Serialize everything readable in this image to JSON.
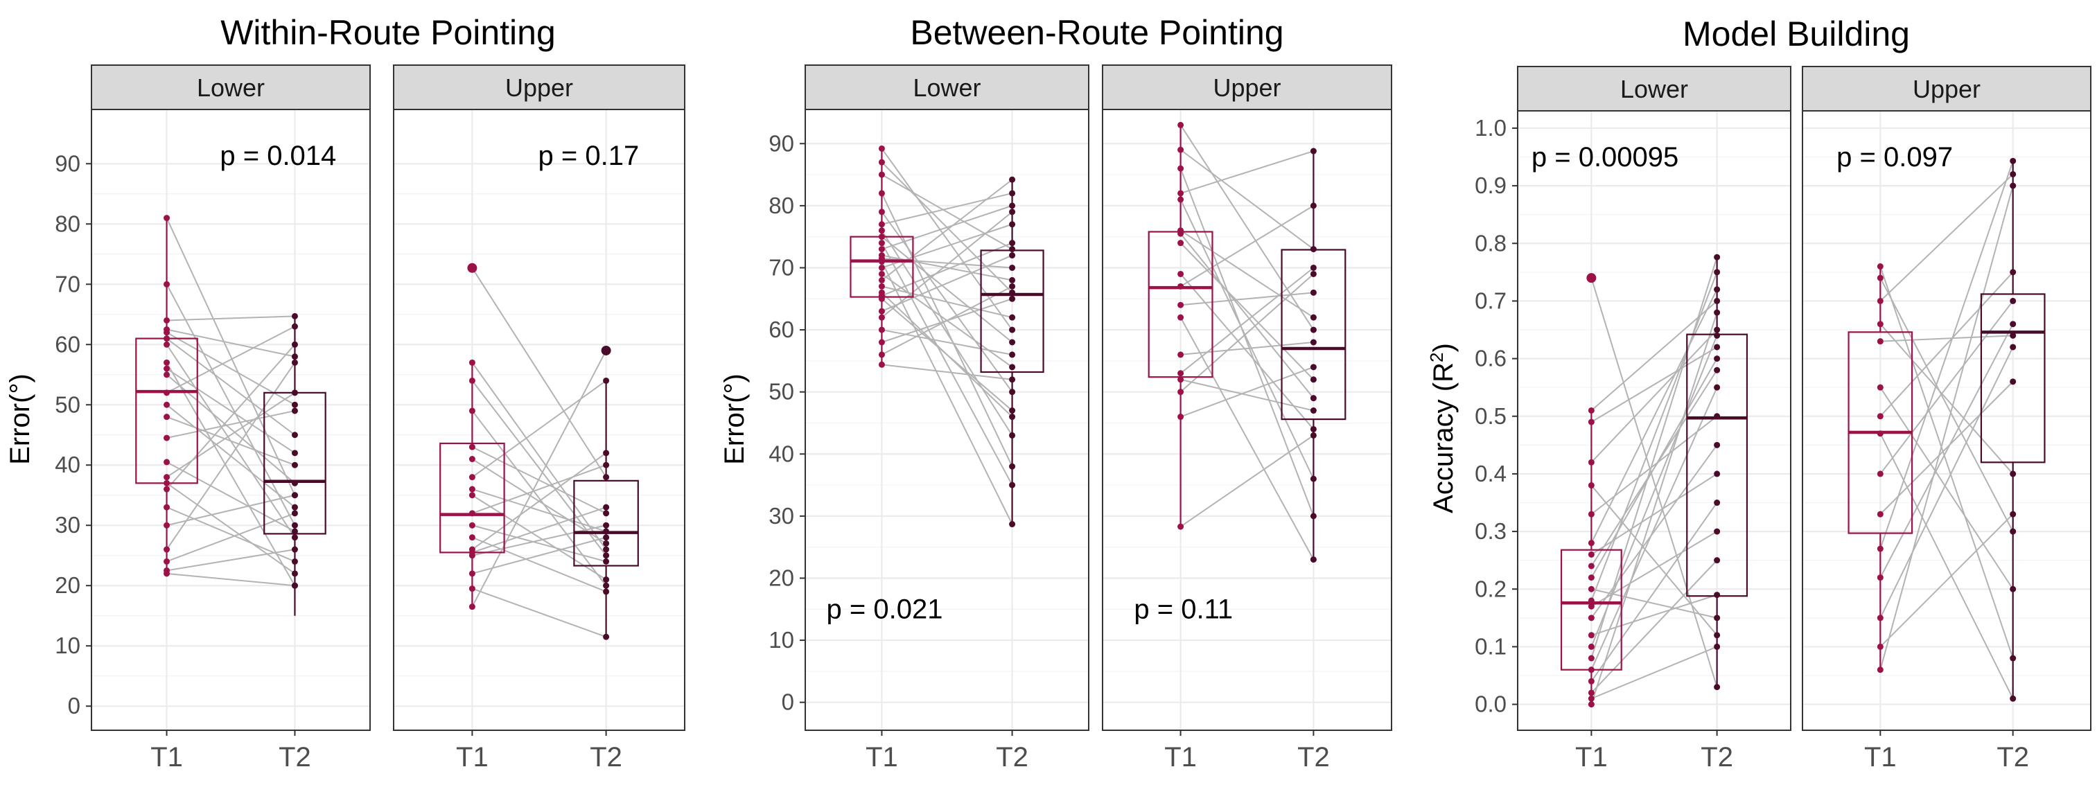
{
  "colors": {
    "t1": "#9b1148",
    "t2": "#4a0a2a",
    "pair_line": "#b3b3b3",
    "strip_fill": "#d9d9d9",
    "grid": "#ebebeb"
  },
  "chart_data": [
    {
      "type": "box",
      "title": "Within-Route Pointing",
      "ylabel": "Error(°)",
      "ylim": [
        -4,
        99
      ],
      "yticks": [
        0,
        10,
        20,
        30,
        40,
        50,
        60,
        70,
        80,
        90
      ],
      "yticklabels": [
        "0",
        "10",
        "20",
        "30",
        "40",
        "50",
        "60",
        "70",
        "80",
        "90"
      ],
      "pval_pos": "top",
      "categories": [
        "T1",
        "T2"
      ],
      "facets": [
        {
          "label": "Lower",
          "p_value": "p = 0.014",
          "box": [
            {
              "q1": 37,
              "median": 52.2,
              "q3": 61,
              "lo": 22,
              "hi": 81
            },
            {
              "q1": 28.6,
              "median": 37.3,
              "q3": 52,
              "lo": 15,
              "hi": 64.7
            }
          ],
          "pairs": [
            [
              81,
              35
            ],
            [
              70,
              30
            ],
            [
              64,
              64.7
            ],
            [
              62.5,
              58
            ],
            [
              62,
              50
            ],
            [
              61,
              45
            ],
            [
              60,
              28
            ],
            [
              57,
              20
            ],
            [
              56,
              42
            ],
            [
              55,
              37
            ],
            [
              52,
              63
            ],
            [
              50,
              33
            ],
            [
              48,
              40
            ],
            [
              44.5,
              49
            ],
            [
              40.5,
              29
            ],
            [
              38,
              52
            ],
            [
              37,
              22
            ],
            [
              36,
              60
            ],
            [
              33,
              24
            ],
            [
              30,
              35
            ],
            [
              26,
              57
            ],
            [
              24,
              32
            ],
            [
              22.5,
              26
            ],
            [
              22,
              20
            ]
          ],
          "outliers": []
        },
        {
          "label": "Upper",
          "p_value": "p = 0.17",
          "box": [
            {
              "q1": 25.5,
              "median": 31.8,
              "q3": 43.6,
              "lo": 16.5,
              "hi": 57
            },
            {
              "q1": 23.3,
              "median": 28.8,
              "q3": 37.4,
              "lo": 11.5,
              "hi": 54
            }
          ],
          "pairs": [
            [
              72.7,
              38
            ],
            [
              57,
              26
            ],
            [
              54,
              25
            ],
            [
              49,
              20
            ],
            [
              43,
              32
            ],
            [
              41,
              27
            ],
            [
              38,
              54
            ],
            [
              36,
              29
            ],
            [
              35,
              21
            ],
            [
              32,
              40
            ],
            [
              30,
              24
            ],
            [
              28,
              19
            ],
            [
              26,
              42
            ],
            [
              25.5,
              33
            ],
            [
              25,
              30
            ],
            [
              22,
              28
            ],
            [
              19.5,
              11.5
            ],
            [
              16.5,
              59
            ]
          ],
          "outliers": [
            {
              "series": 0,
              "value": 72.7
            },
            {
              "series": 1,
              "value": 59
            }
          ]
        }
      ]
    },
    {
      "type": "box",
      "title": "Between-Route Pointing",
      "ylabel": "Error(°)",
      "ylim": [
        -4.5,
        95.5
      ],
      "yticks": [
        0,
        10,
        20,
        30,
        40,
        50,
        60,
        70,
        80,
        90
      ],
      "yticklabels": [
        "0",
        "10",
        "20",
        "30",
        "40",
        "50",
        "60",
        "70",
        "80",
        "90"
      ],
      "pval_pos": "bottom",
      "categories": [
        "T1",
        "T2"
      ],
      "facets": [
        {
          "label": "Lower",
          "p_value": "p = 0.021",
          "box": [
            {
              "q1": 65.3,
              "median": 71.1,
              "q3": 75,
              "lo": 54.4,
              "hi": 89.2
            },
            {
              "q1": 53.2,
              "median": 65.7,
              "q3": 72.8,
              "lo": 28.7,
              "hi": 84.2
            }
          ],
          "pairs": [
            [
              89.2,
              60
            ],
            [
              87,
              66
            ],
            [
              85,
              73
            ],
            [
              82,
              38
            ],
            [
              79,
              50
            ],
            [
              77,
              82
            ],
            [
              76,
              43
            ],
            [
              75,
              58
            ],
            [
              74,
              35
            ],
            [
              73,
              80
            ],
            [
              72,
              68
            ],
            [
              71.5,
              70
            ],
            [
              71,
              28.7
            ],
            [
              70,
              77
            ],
            [
              69,
              54
            ],
            [
              68,
              84.2
            ],
            [
              67,
              62
            ],
            [
              66,
              46
            ],
            [
              65.5,
              74
            ],
            [
              65,
              47
            ],
            [
              63,
              72
            ],
            [
              62,
              79
            ],
            [
              60,
              56
            ],
            [
              58,
              65
            ],
            [
              56,
              67
            ],
            [
              54.4,
              52
            ]
          ],
          "outliers": []
        },
        {
          "label": "Upper",
          "p_value": "p = 0.11",
          "box": [
            {
              "q1": 52.4,
              "median": 66.8,
              "q3": 75.8,
              "lo": 28.3,
              "hi": 93
            },
            {
              "q1": 45.6,
              "median": 57,
              "q3": 72.9,
              "lo": 23,
              "hi": 88.8
            }
          ],
          "pairs": [
            [
              93,
              60
            ],
            [
              89,
              73
            ],
            [
              86,
              30
            ],
            [
              82,
              88.8
            ],
            [
              81,
              36
            ],
            [
              76,
              62
            ],
            [
              75.5,
              49
            ],
            [
              74,
              52
            ],
            [
              69,
              44
            ],
            [
              67,
              80
            ],
            [
              64,
              66
            ],
            [
              62,
              23
            ],
            [
              56,
              58
            ],
            [
              53,
              70
            ],
            [
              52,
              47
            ],
            [
              50,
              69
            ],
            [
              46,
              54
            ],
            [
              28.3,
              43
            ]
          ],
          "outliers": []
        }
      ]
    },
    {
      "type": "box",
      "title": "Model Building",
      "ylabel": "Accuracy (R²)",
      "ylim": [
        -0.045,
        1.03
      ],
      "yticks": [
        0.0,
        0.1,
        0.2,
        0.3,
        0.4,
        0.5,
        0.6,
        0.7,
        0.8,
        0.9,
        1.0
      ],
      "yticklabels": [
        "0.0",
        "0.1",
        "0.2",
        "0.3",
        "0.4",
        "0.5",
        "0.6",
        "0.7",
        "0.8",
        "0.9",
        "1.0"
      ],
      "pval_pos": "top",
      "categories": [
        "T1",
        "T2"
      ],
      "facets": [
        {
          "label": "Lower",
          "p_value": "p = 0.00095",
          "box": [
            {
              "q1": 0.06,
              "median": 0.176,
              "q3": 0.268,
              "lo": 0.0,
              "hi": 0.51
            },
            {
              "q1": 0.188,
              "median": 0.497,
              "q3": 0.642,
              "lo": 0.03,
              "hi": 0.776
            }
          ],
          "pairs": [
            [
              0.74,
              0.03
            ],
            [
              0.51,
              0.7
            ],
            [
              0.49,
              0.62
            ],
            [
              0.42,
              0.65
            ],
            [
              0.38,
              0.12
            ],
            [
              0.33,
              0.5
            ],
            [
              0.28,
              0.72
            ],
            [
              0.26,
              0.4
            ],
            [
              0.24,
              0.58
            ],
            [
              0.22,
              0.6
            ],
            [
              0.2,
              0.15
            ],
            [
              0.18,
              0.75
            ],
            [
              0.17,
              0.3
            ],
            [
              0.15,
              0.45
            ],
            [
              0.12,
              0.19
            ],
            [
              0.1,
              0.64
            ],
            [
              0.08,
              0.776
            ],
            [
              0.06,
              0.55
            ],
            [
              0.04,
              0.35
            ],
            [
              0.02,
              0.25
            ],
            [
              0.0,
              0.68
            ],
            [
              0.01,
              0.1
            ]
          ],
          "outliers": [
            {
              "series": 0,
              "value": 0.74
            }
          ]
        },
        {
          "label": "Upper",
          "p_value": "p = 0.097",
          "box": [
            {
              "q1": 0.297,
              "median": 0.472,
              "q3": 0.646,
              "lo": 0.06,
              "hi": 0.76
            },
            {
              "q1": 0.42,
              "median": 0.646,
              "q3": 0.712,
              "lo": 0.01,
              "hi": 0.943
            }
          ],
          "pairs": [
            [
              0.76,
              0.08
            ],
            [
              0.74,
              0.3
            ],
            [
              0.7,
              0.92
            ],
            [
              0.66,
              0.4
            ],
            [
              0.63,
              0.64
            ],
            [
              0.55,
              0.2
            ],
            [
              0.5,
              0.75
            ],
            [
              0.47,
              0.01
            ],
            [
              0.4,
              0.7
            ],
            [
              0.33,
              0.56
            ],
            [
              0.27,
              0.943
            ],
            [
              0.22,
              0.66
            ],
            [
              0.15,
              0.62
            ],
            [
              0.1,
              0.33
            ],
            [
              0.06,
              0.9
            ]
          ],
          "outliers": []
        }
      ]
    }
  ]
}
